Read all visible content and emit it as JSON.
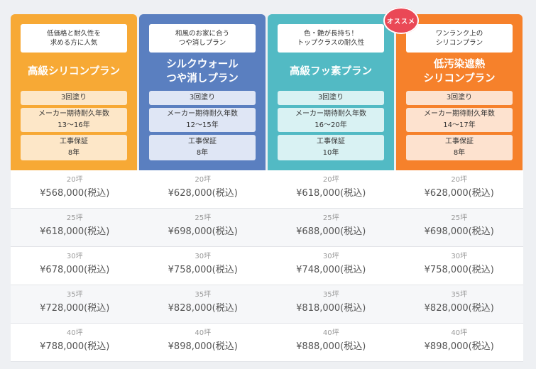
{
  "badge": "オススメ",
  "colors": {
    "plan1": "#f7a935",
    "plan2": "#5a7fc0",
    "plan3": "#52bac4",
    "plan4": "#f6812b",
    "box1": "#fde7c8",
    "box2": "#dfe6f5",
    "box3": "#d9f2f3",
    "box4": "#fde2cf",
    "badge": "#ea4856"
  },
  "plans": [
    {
      "tagline": "低価格と耐久性を\n求める方に人気",
      "name": "高級シリコンプラン",
      "coats": "3回塗り",
      "lifespan_label": "メーカー期待耐久年数",
      "lifespan": "13～16年",
      "warranty_label": "工事保証",
      "warranty": "8年"
    },
    {
      "tagline": "和風のお家に合う\nつや消しプラン",
      "name": "シルクウォール\nつや消しプラン",
      "coats": "3回塗り",
      "lifespan_label": "メーカー期待耐久年数",
      "lifespan": "12～15年",
      "warranty_label": "工事保証",
      "warranty": "8年"
    },
    {
      "tagline": "色・艶が長持ち！\nトップクラスの耐久性",
      "name": "高級フッ素プラン",
      "coats": "3回塗り",
      "lifespan_label": "メーカー期待耐久年数",
      "lifespan": "16～20年",
      "warranty_label": "工事保証",
      "warranty": "10年"
    },
    {
      "tagline": "ワンランク上の\nシリコンプラン",
      "name": "低汚染遮熱\nシリコンプラン",
      "coats": "3回塗り",
      "lifespan_label": "メーカー期待耐久年数",
      "lifespan": "14～17年",
      "warranty_label": "工事保証",
      "warranty": "8年"
    }
  ],
  "prices": [
    {
      "c": [
        {
          "tsubo": "20坪",
          "price": "¥568,000(税込)"
        },
        {
          "tsubo": "20坪",
          "price": "¥628,000(税込)"
        },
        {
          "tsubo": "20坪",
          "price": "¥618,000(税込)"
        },
        {
          "tsubo": "20坪",
          "price": "¥628,000(税込)"
        }
      ]
    },
    {
      "c": [
        {
          "tsubo": "25坪",
          "price": "¥618,000(税込)"
        },
        {
          "tsubo": "25坪",
          "price": "¥698,000(税込)"
        },
        {
          "tsubo": "25坪",
          "price": "¥688,000(税込)"
        },
        {
          "tsubo": "25坪",
          "price": "¥698,000(税込)"
        }
      ]
    },
    {
      "c": [
        {
          "tsubo": "30坪",
          "price": "¥678,000(税込)"
        },
        {
          "tsubo": "30坪",
          "price": "¥758,000(税込)"
        },
        {
          "tsubo": "30坪",
          "price": "¥748,000(税込)"
        },
        {
          "tsubo": "30坪",
          "price": "¥758,000(税込)"
        }
      ]
    },
    {
      "c": [
        {
          "tsubo": "35坪",
          "price": "¥728,000(税込)"
        },
        {
          "tsubo": "35坪",
          "price": "¥828,000(税込)"
        },
        {
          "tsubo": "35坪",
          "price": "¥818,000(税込)"
        },
        {
          "tsubo": "35坪",
          "price": "¥828,000(税込)"
        }
      ]
    },
    {
      "c": [
        {
          "tsubo": "40坪",
          "price": "¥788,000(税込)"
        },
        {
          "tsubo": "40坪",
          "price": "¥898,000(税込)"
        },
        {
          "tsubo": "40坪",
          "price": "¥888,000(税込)"
        },
        {
          "tsubo": "40坪",
          "price": "¥898,000(税込)"
        }
      ]
    }
  ]
}
